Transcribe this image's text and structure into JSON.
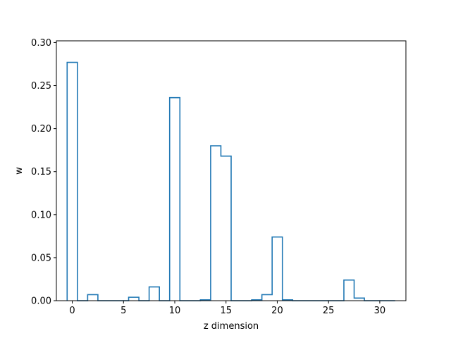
{
  "chart_data": {
    "type": "step",
    "xlabel": "z dimension",
    "ylabel": "w",
    "xlim": [
      -1.55,
      32.55
    ],
    "ylim": [
      0.0,
      0.302
    ],
    "xticks": [
      0,
      5,
      10,
      15,
      20,
      25,
      30
    ],
    "xtick_labels": [
      "0",
      "5",
      "10",
      "15",
      "20",
      "25",
      "30"
    ],
    "yticks": [
      0.0,
      0.05,
      0.1,
      0.15,
      0.2,
      0.25,
      0.3
    ],
    "ytick_labels": [
      "0.00",
      "0.05",
      "0.10",
      "0.15",
      "0.20",
      "0.25",
      "0.30"
    ],
    "grid": false,
    "series": [
      {
        "color": "#1f77b4",
        "x": [
          0,
          1,
          2,
          3,
          4,
          5,
          6,
          7,
          8,
          9,
          10,
          11,
          12,
          13,
          14,
          15,
          16,
          17,
          18,
          19,
          20,
          21,
          22,
          23,
          24,
          25,
          26,
          27,
          28,
          29,
          30,
          31
        ],
        "values": [
          0.277,
          0.0,
          0.007,
          0.0,
          0.0,
          0.0,
          0.004,
          0.0,
          0.016,
          0.0,
          0.236,
          0.0,
          0.0,
          0.001,
          0.18,
          0.168,
          0.0,
          0.0,
          0.001,
          0.007,
          0.074,
          0.001,
          0.0,
          0.0,
          0.0,
          0.0,
          0.0,
          0.024,
          0.003,
          0.0,
          0.0,
          0.0
        ]
      }
    ]
  }
}
